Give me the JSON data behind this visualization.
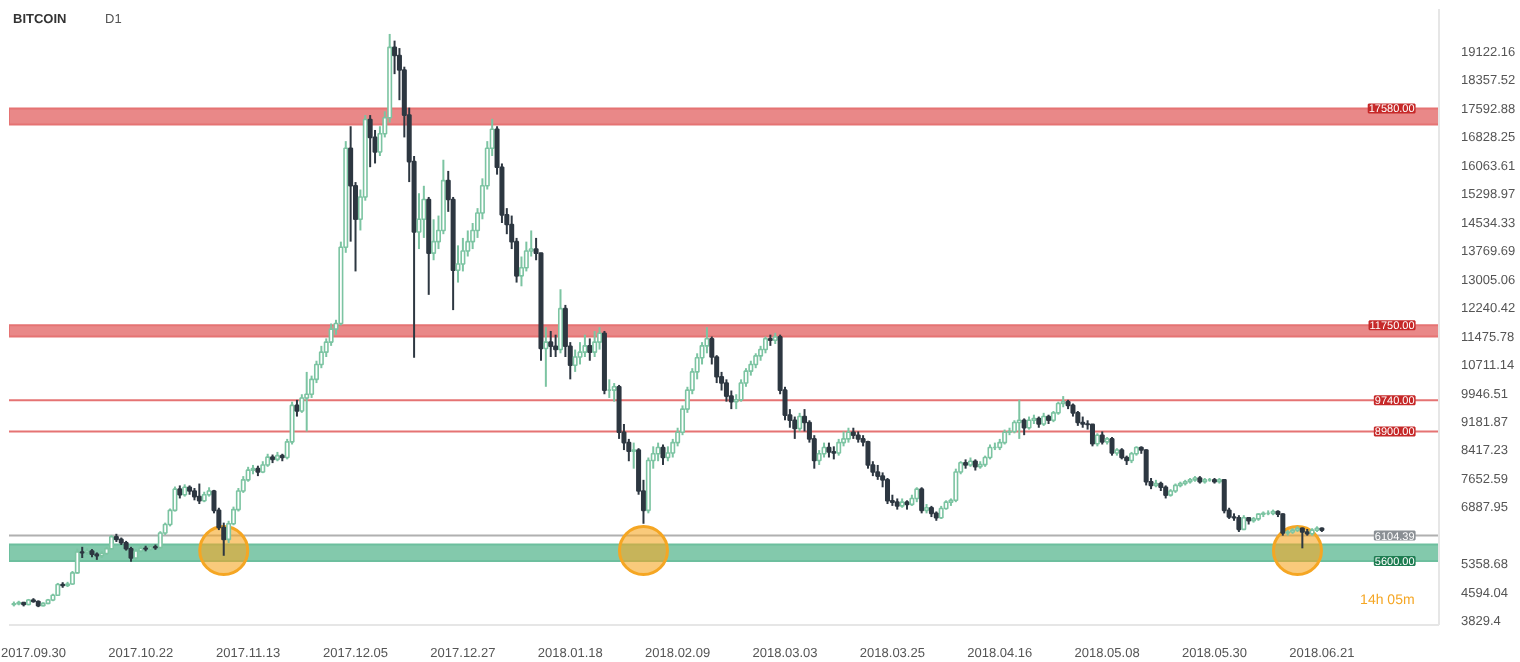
{
  "chart_data": {
    "type": "candlestick",
    "title": "BITCOIN",
    "subtitle": "D1",
    "x": [
      "2017-09-26",
      "2017-09-27",
      "2017-09-28",
      "2017-09-29",
      "2017-09-30",
      "2017-10-01",
      "2017-10-02",
      "2017-10-03",
      "2017-10-04",
      "2017-10-05",
      "2017-10-06",
      "2017-10-07",
      "2017-10-08",
      "2017-10-09",
      "2017-10-10",
      "2017-10-11",
      "2017-10-12",
      "2017-10-13",
      "2017-10-14",
      "2017-10-15",
      "2017-10-16",
      "2017-10-17",
      "2017-10-18",
      "2017-10-19",
      "2017-10-20",
      "2017-10-21",
      "2017-10-22",
      "2017-10-23",
      "2017-10-24",
      "2017-10-25",
      "2017-10-26",
      "2017-10-27",
      "2017-10-28",
      "2017-10-29",
      "2017-10-30",
      "2017-10-31",
      "2017-11-01",
      "2017-11-02",
      "2017-11-03",
      "2017-11-04",
      "2017-11-05",
      "2017-11-06",
      "2017-11-07",
      "2017-11-08",
      "2017-11-09",
      "2017-11-10",
      "2017-11-11",
      "2017-11-12",
      "2017-11-13",
      "2017-11-14",
      "2017-11-15",
      "2017-11-16",
      "2017-11-17",
      "2017-11-18",
      "2017-11-19",
      "2017-11-20",
      "2017-11-21",
      "2017-11-22",
      "2017-11-23",
      "2017-11-24",
      "2017-11-25",
      "2017-11-26",
      "2017-11-27",
      "2017-11-28",
      "2017-11-29",
      "2017-11-30",
      "2017-12-01",
      "2017-12-02",
      "2017-12-03",
      "2017-12-04",
      "2017-12-05",
      "2017-12-06",
      "2017-12-07",
      "2017-12-08",
      "2017-12-09",
      "2017-12-10",
      "2017-12-11",
      "2017-12-12",
      "2017-12-13",
      "2017-12-14",
      "2017-12-15",
      "2017-12-16",
      "2017-12-17",
      "2017-12-18",
      "2017-12-19",
      "2017-12-20",
      "2017-12-21",
      "2017-12-22",
      "2017-12-23",
      "2017-12-24",
      "2017-12-25",
      "2017-12-26",
      "2017-12-27",
      "2017-12-28",
      "2017-12-29",
      "2017-12-30",
      "2017-12-31",
      "2018-01-01",
      "2018-01-02",
      "2018-01-03",
      "2018-01-04",
      "2018-01-05",
      "2018-01-06",
      "2018-01-07",
      "2018-01-08",
      "2018-01-09",
      "2018-01-10",
      "2018-01-11",
      "2018-01-12",
      "2018-01-13",
      "2018-01-14",
      "2018-01-15",
      "2018-01-16",
      "2018-01-17",
      "2018-01-18",
      "2018-01-19",
      "2018-01-20",
      "2018-01-21",
      "2018-01-22",
      "2018-01-23",
      "2018-01-24",
      "2018-01-25",
      "2018-01-26",
      "2018-01-27",
      "2018-01-28",
      "2018-01-29",
      "2018-01-30",
      "2018-01-31",
      "2018-02-01",
      "2018-02-02",
      "2018-02-03",
      "2018-02-04",
      "2018-02-05",
      "2018-02-06",
      "2018-02-07",
      "2018-02-08",
      "2018-02-09",
      "2018-02-10",
      "2018-02-11",
      "2018-02-12",
      "2018-02-13",
      "2018-02-14",
      "2018-02-15",
      "2018-02-16",
      "2018-02-17",
      "2018-02-18",
      "2018-02-19",
      "2018-02-20",
      "2018-02-21",
      "2018-02-22",
      "2018-02-23",
      "2018-02-24",
      "2018-02-25",
      "2018-02-26",
      "2018-02-27",
      "2018-02-28",
      "2018-03-01",
      "2018-03-02",
      "2018-03-03",
      "2018-03-04",
      "2018-03-05",
      "2018-03-06",
      "2018-03-07",
      "2018-03-08",
      "2018-03-09",
      "2018-03-10",
      "2018-03-11",
      "2018-03-12",
      "2018-03-13",
      "2018-03-14",
      "2018-03-15",
      "2018-03-16",
      "2018-03-17",
      "2018-03-18",
      "2018-03-19",
      "2018-03-20",
      "2018-03-21",
      "2018-03-22",
      "2018-03-23",
      "2018-03-24",
      "2018-03-25",
      "2018-03-26",
      "2018-03-27",
      "2018-03-28",
      "2018-03-29",
      "2018-03-30",
      "2018-03-31",
      "2018-04-01",
      "2018-04-02",
      "2018-04-03",
      "2018-04-04",
      "2018-04-05",
      "2018-04-06",
      "2018-04-07",
      "2018-04-08",
      "2018-04-09",
      "2018-04-10",
      "2018-04-11",
      "2018-04-12",
      "2018-04-13",
      "2018-04-14",
      "2018-04-15",
      "2018-04-16",
      "2018-04-17",
      "2018-04-18",
      "2018-04-19",
      "2018-04-20",
      "2018-04-21",
      "2018-04-22",
      "2018-04-23",
      "2018-04-24",
      "2018-04-25",
      "2018-04-26",
      "2018-04-27",
      "2018-04-28",
      "2018-04-29",
      "2018-04-30",
      "2018-05-01",
      "2018-05-02",
      "2018-05-03",
      "2018-05-04",
      "2018-05-05",
      "2018-05-06",
      "2018-05-07",
      "2018-05-08",
      "2018-05-09",
      "2018-05-10",
      "2018-05-11",
      "2018-05-12",
      "2018-05-13",
      "2018-05-14",
      "2018-05-15",
      "2018-05-16",
      "2018-05-17",
      "2018-05-18",
      "2018-05-19",
      "2018-05-20",
      "2018-05-21",
      "2018-05-22",
      "2018-05-23",
      "2018-05-24",
      "2018-05-25",
      "2018-05-26",
      "2018-05-27",
      "2018-05-28",
      "2018-05-29",
      "2018-05-30",
      "2018-05-31",
      "2018-06-01",
      "2018-06-02",
      "2018-06-03",
      "2018-06-04",
      "2018-06-05",
      "2018-06-06",
      "2018-06-07",
      "2018-06-08",
      "2018-06-09",
      "2018-06-10",
      "2018-06-11",
      "2018-06-12",
      "2018-06-13",
      "2018-06-14",
      "2018-06-15",
      "2018-06-16",
      "2018-06-17",
      "2018-06-18",
      "2018-06-19",
      "2018-06-20",
      "2018-06-21"
    ],
    "ohlc": [
      [
        4250,
        4330,
        4200,
        4270
      ],
      [
        4270,
        4350,
        4230,
        4300
      ],
      [
        4300,
        4320,
        4200,
        4250
      ],
      [
        4250,
        4400,
        4230,
        4370
      ],
      [
        4370,
        4420,
        4300,
        4330
      ],
      [
        4330,
        4360,
        4180,
        4220
      ],
      [
        4220,
        4310,
        4200,
        4280
      ],
      [
        4280,
        4400,
        4260,
        4370
      ],
      [
        4370,
        4540,
        4340,
        4500
      ],
      [
        4500,
        4830,
        4480,
        4790
      ],
      [
        4790,
        4850,
        4700,
        4760
      ],
      [
        4760,
        4860,
        4720,
        4800
      ],
      [
        4800,
        5150,
        4780,
        5100
      ],
      [
        5100,
        5750,
        5080,
        5660
      ],
      [
        5660,
        5800,
        5500,
        5640
      ],
      [
        5640,
        5760,
        5580,
        5690
      ],
      [
        5690,
        5740,
        5520,
        5600
      ],
      [
        5600,
        5650,
        5450,
        5560
      ],
      [
        5560,
        5680,
        5500,
        5620
      ],
      [
        5620,
        5800,
        5580,
        5750
      ],
      [
        5750,
        6120,
        5720,
        6070
      ],
      [
        6070,
        6150,
        5930,
        6000
      ],
      [
        6000,
        6050,
        5850,
        5910
      ],
      [
        5910,
        5960,
        5700,
        5750
      ],
      [
        5750,
        5800,
        5400,
        5500
      ],
      [
        5500,
        5740,
        5460,
        5690
      ],
      [
        5690,
        5820,
        5650,
        5760
      ],
      [
        5760,
        5830,
        5680,
        5740
      ],
      [
        5740,
        5850,
        5700,
        5800
      ],
      [
        5800,
        5860,
        5720,
        5780
      ],
      [
        5780,
        6220,
        5760,
        6170
      ],
      [
        6170,
        6450,
        6120,
        6400
      ],
      [
        6400,
        6830,
        6350,
        6780
      ],
      [
        6780,
        7420,
        6750,
        7350
      ],
      [
        7350,
        7450,
        7100,
        7200
      ],
      [
        7200,
        7480,
        7150,
        7400
      ],
      [
        7400,
        7450,
        7200,
        7300
      ],
      [
        7300,
        7380,
        7050,
        7150
      ],
      [
        7150,
        7500,
        6950,
        7040
      ],
      [
        7040,
        7280,
        7000,
        7200
      ],
      [
        7200,
        7400,
        7150,
        7300
      ],
      [
        7300,
        7330,
        6700,
        6780
      ],
      [
        6780,
        6850,
        6250,
        6320
      ],
      [
        6320,
        6450,
        5560,
        6000
      ],
      [
        6000,
        6500,
        5900,
        6420
      ],
      [
        6420,
        6880,
        6380,
        6800
      ],
      [
        6800,
        7380,
        6750,
        7300
      ],
      [
        7300,
        7700,
        7250,
        7600
      ],
      [
        7600,
        7950,
        7550,
        7860
      ],
      [
        7860,
        8000,
        7750,
        7900
      ],
      [
        7900,
        7980,
        7700,
        7810
      ],
      [
        7810,
        8100,
        7780,
        8000
      ],
      [
        8000,
        8300,
        7950,
        8210
      ],
      [
        8210,
        8280,
        8050,
        8150
      ],
      [
        8150,
        8350,
        8100,
        8250
      ],
      [
        8250,
        8300,
        8100,
        8200
      ],
      [
        8200,
        8700,
        8150,
        8620
      ],
      [
        8620,
        9700,
        8550,
        9600
      ],
      [
        9600,
        9750,
        9300,
        9450
      ],
      [
        9450,
        9900,
        9400,
        9800
      ],
      [
        9800,
        10500,
        8900,
        9900
      ],
      [
        9900,
        10400,
        9800,
        10300
      ],
      [
        10300,
        10800,
        10200,
        10700
      ],
      [
        10700,
        11200,
        10600,
        11030
      ],
      [
        11030,
        11400,
        10900,
        11300
      ],
      [
        11300,
        11800,
        11200,
        11650
      ],
      [
        11650,
        11900,
        11500,
        11800
      ],
      [
        11800,
        14000,
        11750,
        13850
      ],
      [
        13850,
        16700,
        13700,
        16510
      ],
      [
        16510,
        17100,
        14000,
        15500
      ],
      [
        15500,
        15600,
        13200,
        14600
      ],
      [
        14600,
        15400,
        14300,
        15200
      ],
      [
        15200,
        17400,
        15100,
        17280
      ],
      [
        17280,
        17400,
        16000,
        16800
      ],
      [
        16800,
        17000,
        16100,
        16410
      ],
      [
        16410,
        17100,
        16300,
        16900
      ],
      [
        16900,
        17500,
        16800,
        17330
      ],
      [
        17330,
        19580,
        17200,
        19220
      ],
      [
        19220,
        19400,
        18500,
        19000
      ],
      [
        19000,
        19200,
        17800,
        18610
      ],
      [
        18610,
        18700,
        16800,
        17400
      ],
      [
        17400,
        17600,
        15600,
        16150
      ],
      [
        16150,
        16300,
        10880,
        14260
      ],
      [
        14260,
        15300,
        13800,
        14600
      ],
      [
        14600,
        15500,
        14100,
        15130
      ],
      [
        15130,
        15200,
        12570,
        13690
      ],
      [
        13690,
        14600,
        13500,
        14000
      ],
      [
        14000,
        14700,
        13800,
        14300
      ],
      [
        14300,
        16200,
        14200,
        15640
      ],
      [
        15640,
        15900,
        14800,
        15130
      ],
      [
        15130,
        15200,
        12160,
        13230
      ],
      [
        13230,
        13900,
        12900,
        13400
      ],
      [
        13400,
        14100,
        13200,
        13750
      ],
      [
        13750,
        14300,
        13600,
        14000
      ],
      [
        14000,
        14500,
        13800,
        14300
      ],
      [
        14300,
        14900,
        14100,
        14770
      ],
      [
        14770,
        15700,
        14600,
        15500
      ],
      [
        15500,
        16700,
        15400,
        16510
      ],
      [
        16510,
        17300,
        16300,
        17020
      ],
      [
        17020,
        17100,
        15800,
        16000
      ],
      [
        16000,
        16100,
        14500,
        14720
      ],
      [
        14720,
        14900,
        14200,
        14460
      ],
      [
        14460,
        14700,
        13800,
        14000
      ],
      [
        14000,
        14100,
        12900,
        13080
      ],
      [
        13080,
        13600,
        12800,
        13300
      ],
      [
        13300,
        14000,
        13200,
        13750
      ],
      [
        13750,
        14300,
        13600,
        13800
      ],
      [
        13800,
        14100,
        13500,
        13690
      ],
      [
        13690,
        13700,
        10800,
        11130
      ],
      [
        11130,
        11700,
        10100,
        11300
      ],
      [
        11300,
        11600,
        10900,
        11190
      ],
      [
        11190,
        11500,
        10900,
        11100
      ],
      [
        11100,
        12720,
        11000,
        12200
      ],
      [
        12200,
        12300,
        10900,
        11190
      ],
      [
        11190,
        11300,
        10300,
        10680
      ],
      [
        10680,
        11100,
        10500,
        10900
      ],
      [
        10900,
        11300,
        10700,
        11030
      ],
      [
        11030,
        11500,
        10900,
        11200
      ],
      [
        11200,
        11400,
        10800,
        11030
      ],
      [
        11030,
        11600,
        10900,
        11300
      ],
      [
        11300,
        11700,
        11100,
        11540
      ],
      [
        11540,
        11600,
        9900,
        10010
      ],
      [
        10010,
        10300,
        9800,
        10010
      ],
      [
        10010,
        10200,
        9700,
        10100
      ],
      [
        10100,
        10150,
        8700,
        8880
      ],
      [
        8880,
        9100,
        8400,
        8600
      ],
      [
        8600,
        8700,
        8100,
        8370
      ],
      [
        8370,
        8600,
        7900,
        8400
      ],
      [
        8400,
        8450,
        7200,
        7300
      ],
      [
        7300,
        7600,
        6420,
        6780
      ],
      [
        6780,
        8200,
        6700,
        8120
      ],
      [
        8120,
        8500,
        7900,
        8300
      ],
      [
        8300,
        8600,
        8100,
        8470
      ],
      [
        8470,
        8550,
        8000,
        8200
      ],
      [
        8200,
        8500,
        8100,
        8320
      ],
      [
        8320,
        8700,
        8200,
        8600
      ],
      [
        8600,
        9000,
        8500,
        8880
      ],
      [
        8880,
        9600,
        8800,
        9500
      ],
      [
        9500,
        10100,
        9400,
        10010
      ],
      [
        10010,
        10600,
        9900,
        10500
      ],
      [
        10500,
        11000,
        10300,
        10880
      ],
      [
        10880,
        11300,
        10700,
        11200
      ],
      [
        11200,
        11700,
        11000,
        11390
      ],
      [
        11390,
        11450,
        10700,
        10900
      ],
      [
        10900,
        10950,
        10200,
        10370
      ],
      [
        10370,
        10500,
        10000,
        10200
      ],
      [
        10200,
        10300,
        9700,
        9850
      ],
      [
        9850,
        10000,
        9500,
        9700
      ],
      [
        9700,
        9900,
        9500,
        9750
      ],
      [
        9750,
        10300,
        9700,
        10200
      ],
      [
        10200,
        10600,
        10100,
        10520
      ],
      [
        10520,
        10800,
        10400,
        10700
      ],
      [
        10700,
        11000,
        10600,
        10930
      ],
      [
        10930,
        11200,
        10800,
        11100
      ],
      [
        11100,
        11450,
        11000,
        11390
      ],
      [
        11390,
        11500,
        11200,
        11350
      ],
      [
        11350,
        11550,
        11250,
        11440
      ],
      [
        11440,
        11500,
        9900,
        10010
      ],
      [
        10010,
        10100,
        9200,
        9340
      ],
      [
        9340,
        9500,
        9000,
        9200
      ],
      [
        9200,
        9300,
        8700,
        8980
      ],
      [
        8980,
        9400,
        8900,
        9300
      ],
      [
        9300,
        9500,
        8900,
        9140
      ],
      [
        9140,
        9200,
        8600,
        8700
      ],
      [
        8700,
        8800,
        7900,
        8120
      ],
      [
        8120,
        8400,
        8000,
        8300
      ],
      [
        8300,
        8600,
        8200,
        8470
      ],
      [
        8470,
        8600,
        8200,
        8350
      ],
      [
        8350,
        8500,
        8150,
        8320
      ],
      [
        8320,
        8700,
        8250,
        8600
      ],
      [
        8600,
        8900,
        8500,
        8700
      ],
      [
        8700,
        9000,
        8600,
        8880
      ],
      [
        8880,
        9000,
        8700,
        8800
      ],
      [
        8800,
        8900,
        8600,
        8700
      ],
      [
        8700,
        8800,
        8500,
        8620
      ],
      [
        8620,
        8650,
        7900,
        8000
      ],
      [
        8000,
        8100,
        7700,
        7810
      ],
      [
        7810,
        8000,
        7600,
        7700
      ],
      [
        7700,
        7800,
        7400,
        7600
      ],
      [
        7600,
        7650,
        6950,
        7040
      ],
      [
        7040,
        7200,
        6900,
        7000
      ],
      [
        7000,
        7100,
        6800,
        6900
      ],
      [
        6900,
        7100,
        6850,
        7000
      ],
      [
        7000,
        7050,
        6800,
        6940
      ],
      [
        6940,
        7200,
        6900,
        7100
      ],
      [
        7100,
        7400,
        7000,
        7350
      ],
      [
        7350,
        7400,
        6700,
        6780
      ],
      [
        6780,
        6950,
        6700,
        6850
      ],
      [
        6850,
        6900,
        6600,
        6700
      ],
      [
        6700,
        6750,
        6500,
        6580
      ],
      [
        6580,
        6900,
        6550,
        6830
      ],
      [
        6830,
        7050,
        6800,
        7000
      ],
      [
        7000,
        7100,
        6900,
        7050
      ],
      [
        7050,
        7900,
        7000,
        7810
      ],
      [
        7810,
        8100,
        7750,
        8060
      ],
      [
        8060,
        8150,
        7900,
        8000
      ],
      [
        8000,
        8200,
        7950,
        8100
      ],
      [
        8100,
        8150,
        7850,
        7950
      ],
      [
        7950,
        8100,
        7900,
        8010
      ],
      [
        8010,
        8250,
        7950,
        8200
      ],
      [
        8200,
        8550,
        8150,
        8470
      ],
      [
        8470,
        8600,
        8400,
        8470
      ],
      [
        8470,
        8700,
        8400,
        8600
      ],
      [
        8600,
        8950,
        8550,
        8880
      ],
      [
        8880,
        9000,
        8800,
        8900
      ],
      [
        8900,
        9200,
        8850,
        9140
      ],
      [
        9140,
        9750,
        8700,
        9200
      ],
      [
        9200,
        9250,
        8800,
        9000
      ],
      [
        9000,
        9300,
        8950,
        9200
      ],
      [
        9200,
        9350,
        9100,
        9250
      ],
      [
        9250,
        9300,
        9000,
        9100
      ],
      [
        9100,
        9400,
        9050,
        9300
      ],
      [
        9300,
        9350,
        9100,
        9200
      ],
      [
        9200,
        9450,
        9150,
        9400
      ],
      [
        9400,
        9700,
        9350,
        9650
      ],
      [
        9650,
        9850,
        9550,
        9700
      ],
      [
        9700,
        9750,
        9500,
        9600
      ],
      [
        9600,
        9650,
        9300,
        9400
      ],
      [
        9400,
        9450,
        9050,
        9140
      ],
      [
        9140,
        9300,
        9000,
        9100
      ],
      [
        9100,
        9200,
        8950,
        9090
      ],
      [
        9090,
        9100,
        8500,
        8570
      ],
      [
        8570,
        8850,
        8500,
        8800
      ],
      [
        8800,
        8900,
        8550,
        8620
      ],
      [
        8620,
        8750,
        8550,
        8700
      ],
      [
        8700,
        8750,
        8250,
        8320
      ],
      [
        8320,
        8450,
        8250,
        8400
      ],
      [
        8400,
        8450,
        8150,
        8200
      ],
      [
        8200,
        8250,
        8000,
        8120
      ],
      [
        8120,
        8350,
        8050,
        8300
      ],
      [
        8300,
        8500,
        8250,
        8470
      ],
      [
        8470,
        8500,
        8300,
        8400
      ],
      [
        8400,
        8420,
        7450,
        7550
      ],
      [
        7550,
        7650,
        7350,
        7450
      ],
      [
        7450,
        7600,
        7400,
        7500
      ],
      [
        7500,
        7550,
        7300,
        7400
      ],
      [
        7400,
        7450,
        7100,
        7190
      ],
      [
        7190,
        7350,
        7150,
        7300
      ],
      [
        7300,
        7500,
        7250,
        7450
      ],
      [
        7450,
        7550,
        7400,
        7500
      ],
      [
        7500,
        7600,
        7450,
        7550
      ],
      [
        7550,
        7650,
        7500,
        7600
      ],
      [
        7600,
        7700,
        7550,
        7650
      ],
      [
        7650,
        7700,
        7500,
        7550
      ],
      [
        7550,
        7650,
        7500,
        7600
      ],
      [
        7600,
        7650,
        7550,
        7600
      ],
      [
        7600,
        7650,
        7500,
        7550
      ],
      [
        7550,
        7650,
        7500,
        7600
      ],
      [
        7600,
        7620,
        6700,
        6780
      ],
      [
        6780,
        6850,
        6550,
        6600
      ],
      [
        6600,
        6700,
        6500,
        6580
      ],
      [
        6580,
        6650,
        6200,
        6270
      ],
      [
        6270,
        6650,
        6250,
        6580
      ],
      [
        6580,
        6600,
        6400,
        6500
      ],
      [
        6500,
        6600,
        6450,
        6550
      ],
      [
        6550,
        6700,
        6500,
        6680
      ],
      [
        6680,
        6750,
        6600,
        6700
      ],
      [
        6700,
        6780,
        6650,
        6700
      ],
      [
        6700,
        6800,
        6650,
        6750
      ],
      [
        6750,
        6780,
        6600,
        6680
      ],
      [
        6680,
        6700,
        6100,
        6170
      ],
      [
        6170,
        6250,
        6100,
        6200
      ],
      [
        6200,
        6300,
        6150,
        6250
      ],
      [
        6250,
        6350,
        6200,
        6300
      ],
      [
        6300,
        6320,
        5760,
        6200
      ],
      [
        6200,
        6280,
        6100,
        6150
      ],
      [
        6150,
        6300,
        6100,
        6250
      ],
      [
        6250,
        6350,
        6200,
        6300
      ],
      [
        6300,
        6320,
        6200,
        6250
      ]
    ],
    "series": [
      {
        "type": "scatter",
        "color": "#f5a623",
        "x": [
          "2017-11-08",
          "2018-02-02",
          "2018-06-16"
        ],
        "values": [
          5700,
          5700,
          5700
        ]
      }
    ],
    "marker": "circle",
    "xlim": [
      "2017-09-25",
      "2018-07-15"
    ],
    "xticks": [
      {
        "value": "2017-09-30",
        "label": "2017.09.30"
      },
      {
        "value": "2017-10-22",
        "label": "2017.10.22"
      },
      {
        "value": "2017-11-13",
        "label": "2017.11.13"
      },
      {
        "value": "2017-12-05",
        "label": "2017.12.05"
      },
      {
        "value": "2017-12-27",
        "label": "2017.12.27"
      },
      {
        "value": "2018-01-18",
        "label": "2018.01.18"
      },
      {
        "value": "2018-02-09",
        "label": "2018.02.09"
      },
      {
        "value": "2018-03-03",
        "label": "2018.03.03"
      },
      {
        "value": "2018-03-25",
        "label": "2018.03.25"
      },
      {
        "value": "2018-04-16",
        "label": "2018.04.16"
      },
      {
        "value": "2018-05-08",
        "label": "2018.05.08"
      },
      {
        "value": "2018-05-30",
        "label": "2018.05.30"
      },
      {
        "value": "2018-06-21",
        "label": "2018.06.21"
      }
    ],
    "ylim": [
      3700,
      20250
    ],
    "yticks": [
      19122.16,
      18357.52,
      17592.88,
      16828.25,
      16063.61,
      15298.97,
      14534.33,
      13769.69,
      13005.06,
      12240.42,
      11475.78,
      10711.14,
      9946.51,
      9181.87,
      8417.23,
      7652.59,
      6887.95,
      5358.68,
      4594.04,
      3829.4
    ],
    "bands": [
      {
        "axis": "y",
        "from": 17150,
        "to": 17580,
        "label": "17580.00",
        "color": "#e57373"
      },
      {
        "axis": "y",
        "from": 11450,
        "to": 11750,
        "label": "11750.00",
        "color": "#e57373"
      },
      {
        "axis": "y",
        "from": 5420,
        "to": 5860,
        "label": "5600.00",
        "color": "#6dbf9e"
      }
    ],
    "ref_lines": [
      {
        "axis": "y",
        "value": 9740,
        "label": "9740.00",
        "color": "#e57373"
      },
      {
        "axis": "y",
        "value": 8900,
        "label": "8900.00",
        "color": "#e57373"
      },
      {
        "axis": "y",
        "value": 6104.39,
        "label": "6104.39",
        "color": "#b0b0b0"
      }
    ],
    "annotations": [
      "14h 05m"
    ],
    "grid": false
  }
}
